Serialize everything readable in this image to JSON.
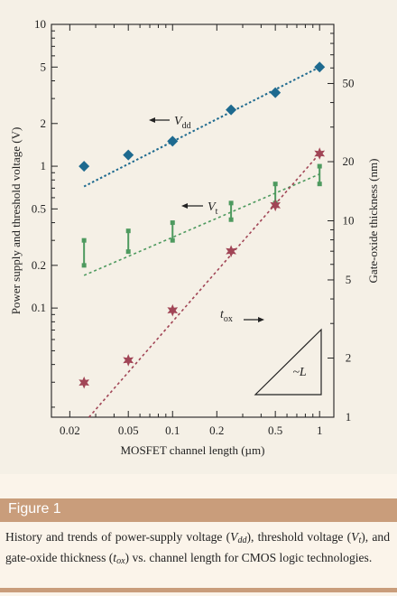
{
  "chart_data": {
    "type": "scatter",
    "x_axis": {
      "label": "MOSFET channel length (µm)",
      "scale": "log",
      "range": [
        0.015,
        1.25
      ],
      "ticks": [
        "0.02",
        "0.05",
        "0.1",
        "0.2",
        "0.5",
        "1"
      ]
    },
    "y_left_axis": {
      "label": "Power supply and threshold voltage (V)",
      "scale": "log",
      "range": [
        0.017,
        10
      ],
      "ticks": [
        "0.1",
        "0.2",
        "0.5",
        "1",
        "2",
        "5",
        "10"
      ]
    },
    "y_right_axis": {
      "label": "Gate-oxide thickness (nm)",
      "scale": "log",
      "range": [
        1,
        100
      ],
      "ticks": [
        "1",
        "2",
        "5",
        "10",
        "20",
        "50"
      ]
    },
    "series": [
      {
        "name": "Vdd",
        "marker": "diamond",
        "color": "#1e6a8f",
        "x": [
          0.025,
          0.05,
          0.1,
          0.25,
          0.5,
          1.0
        ],
        "y": [
          1.0,
          1.2,
          1.5,
          2.5,
          3.3,
          5.0
        ],
        "trend": {
          "x": [
            0.025,
            1.0
          ],
          "y": [
            0.72,
            5.0
          ]
        }
      },
      {
        "name": "Vt",
        "marker": "range-bar",
        "color": "#4e9a5f",
        "x": [
          0.025,
          0.05,
          0.1,
          0.25,
          0.5,
          1.0
        ],
        "y_low": [
          0.2,
          0.25,
          0.3,
          0.42,
          0.55,
          0.75
        ],
        "y_high": [
          0.3,
          0.35,
          0.4,
          0.55,
          0.75,
          1.0
        ],
        "trend": {
          "x": [
            0.025,
            1.0
          ],
          "y": [
            0.17,
            0.88
          ]
        }
      },
      {
        "name": "tox",
        "marker": "star",
        "color": "#a14556",
        "axis": "right",
        "x": [
          0.025,
          0.05,
          0.1,
          0.25,
          0.5,
          1.0
        ],
        "y": [
          1.5,
          1.95,
          3.5,
          7.0,
          12.0,
          22.0
        ],
        "trend": {
          "x": [
            0.027,
            1.0
          ],
          "y": [
            1.0,
            22.0
          ]
        }
      }
    ],
    "annotations": [
      {
        "text": "Vdd",
        "base": "V",
        "sub": "dd"
      },
      {
        "text": "Vt",
        "base": "V",
        "sub": "t"
      },
      {
        "text": "tox",
        "base": "t",
        "sub": "ox"
      },
      {
        "text": "~L"
      }
    ]
  },
  "figure": {
    "label": "Figure 1",
    "caption": {
      "p1": "History and trends of power-supply voltage (",
      "vdd_base": "V",
      "vdd_sub": "dd",
      "p2": "), threshold voltage (",
      "vt_base": "V",
      "vt_sub": "t",
      "p3": "), and gate-oxide thickness (",
      "tox_base": "t",
      "tox_sub": "ox",
      "p4": ") vs. channel length for CMOS logic technologies."
    }
  },
  "colors": {
    "panel": "#f5f0e6",
    "accent": "#c99d7b",
    "vdd": "#1e6a8f",
    "vt": "#4e9a5f",
    "tox": "#a14556"
  }
}
